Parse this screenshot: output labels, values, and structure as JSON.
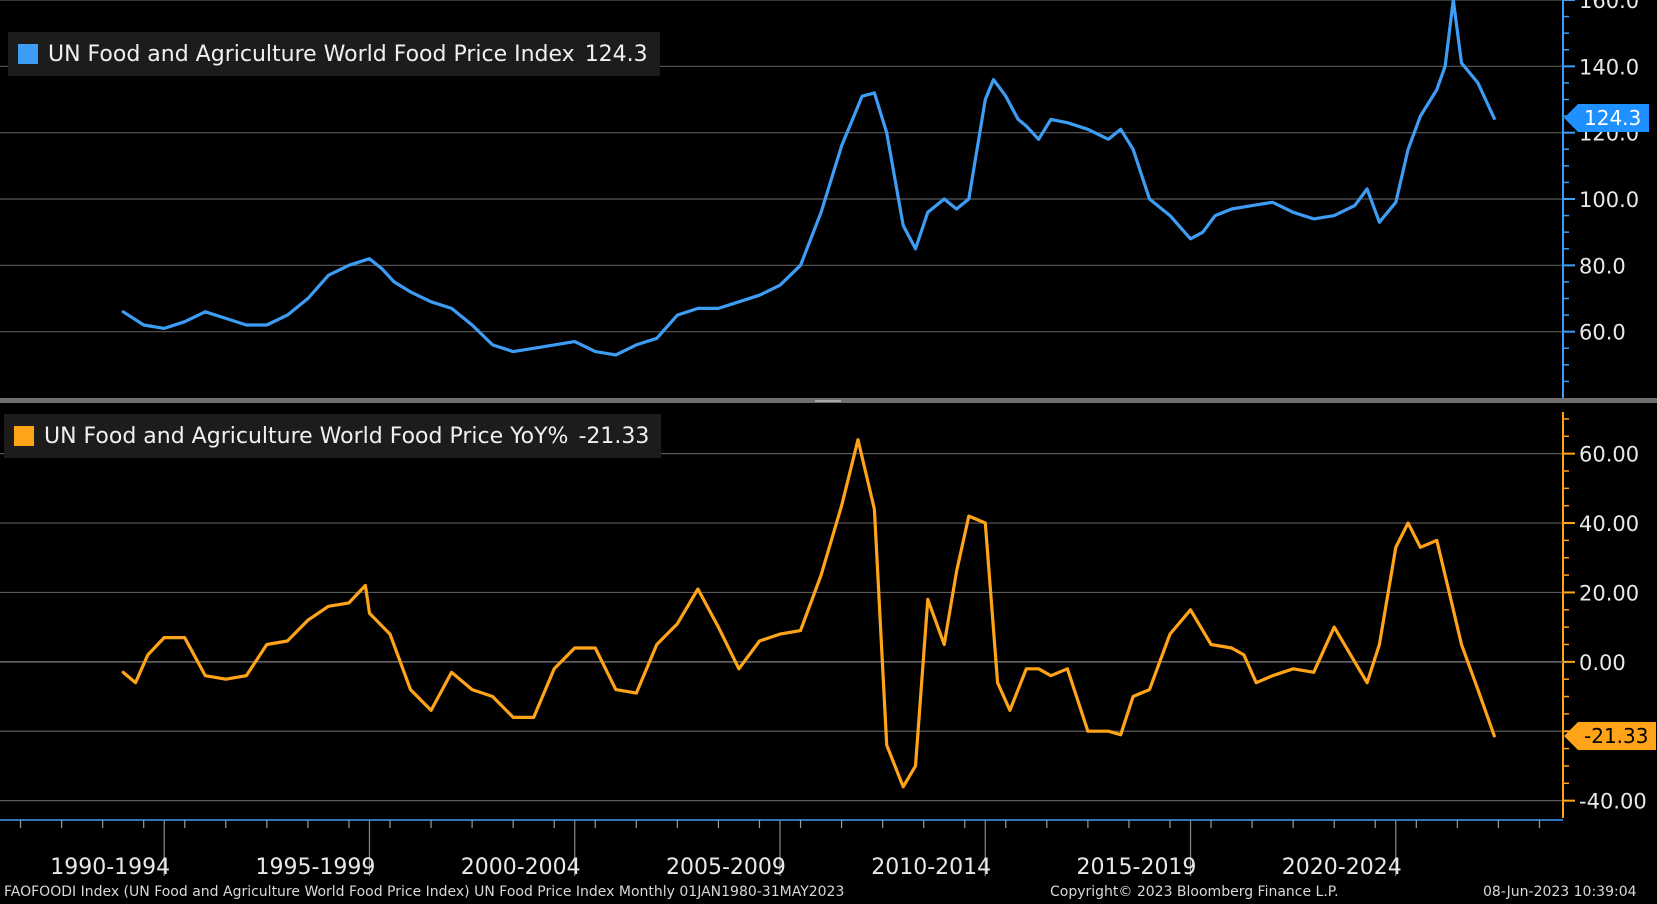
{
  "chart_data": [
    {
      "type": "line",
      "title": "UN Food and Agriculture World Food Price Index",
      "last_value": "124.3",
      "color": "#3d9df5",
      "ylim": [
        40,
        160
      ],
      "yticks": [
        "160.0",
        "140.0",
        "120.0",
        "100.0",
        "80.0",
        "60.0"
      ],
      "ytick_values": [
        160,
        140,
        120,
        100,
        80,
        60
      ],
      "x": [
        1990.0,
        1990.5,
        1991.0,
        1991.5,
        1992.0,
        1992.5,
        1993.0,
        1993.5,
        1994.0,
        1994.5,
        1995.0,
        1995.5,
        1996.0,
        1996.3,
        1996.6,
        1997.0,
        1997.5,
        1998.0,
        1998.5,
        1999.0,
        1999.5,
        2000.0,
        2000.5,
        2001.0,
        2001.5,
        2002.0,
        2002.5,
        2003.0,
        2003.5,
        2004.0,
        2004.5,
        2005.0,
        2005.5,
        2006.0,
        2006.5,
        2007.0,
        2007.5,
        2008.0,
        2008.3,
        2008.6,
        2009.0,
        2009.3,
        2009.6,
        2010.0,
        2010.3,
        2010.6,
        2011.0,
        2011.2,
        2011.5,
        2011.8,
        2012.0,
        2012.3,
        2012.6,
        2013.0,
        2013.5,
        2014.0,
        2014.3,
        2014.6,
        2015.0,
        2015.5,
        2016.0,
        2016.3,
        2016.6,
        2017.0,
        2017.5,
        2018.0,
        2018.5,
        2019.0,
        2019.5,
        2020.0,
        2020.3,
        2020.6,
        2021.0,
        2021.3,
        2021.6,
        2022.0,
        2022.2,
        2022.4,
        2022.6,
        2023.0,
        2023.4
      ],
      "values": [
        66,
        62,
        61,
        63,
        66,
        64,
        62,
        62,
        65,
        70,
        77,
        80,
        82,
        79,
        75,
        72,
        69,
        67,
        62,
        56,
        54,
        55,
        56,
        57,
        54,
        53,
        56,
        58,
        65,
        67,
        67,
        69,
        71,
        74,
        80,
        96,
        116,
        131,
        132,
        120,
        92,
        85,
        96,
        100,
        97,
        100,
        130,
        136,
        131,
        124,
        122,
        118,
        124,
        123,
        121,
        118,
        121,
        115,
        100,
        95,
        88,
        90,
        95,
        97,
        98,
        99,
        96,
        94,
        95,
        98,
        103,
        93,
        99,
        115,
        125,
        133,
        140,
        160,
        141,
        135,
        124.3
      ]
    },
    {
      "type": "line",
      "title": "UN Food and Agriculture World Food Price YoY%",
      "last_value": "-21.33",
      "color": "#ffa319",
      "ylim": [
        -45,
        72
      ],
      "yticks": [
        "60.00",
        "40.00",
        "20.00",
        "0.00",
        "-20.00",
        "-40.00"
      ],
      "ytick_values": [
        60,
        40,
        20,
        0,
        -20,
        -40
      ],
      "x": [
        1990.0,
        1990.3,
        1990.6,
        1991.0,
        1991.5,
        1992.0,
        1992.5,
        1993.0,
        1993.5,
        1994.0,
        1994.5,
        1995.0,
        1995.5,
        1995.9,
        1996.0,
        1996.5,
        1997.0,
        1997.5,
        1998.0,
        1998.5,
        1999.0,
        1999.5,
        2000.0,
        2000.5,
        2001.0,
        2001.5,
        2002.0,
        2002.5,
        2003.0,
        2003.5,
        2004.0,
        2004.5,
        2005.0,
        2005.5,
        2006.0,
        2006.5,
        2007.0,
        2007.5,
        2007.9,
        2008.3,
        2008.6,
        2009.0,
        2009.3,
        2009.6,
        2010.0,
        2010.3,
        2010.6,
        2011.0,
        2011.3,
        2011.6,
        2012.0,
        2012.3,
        2012.6,
        2013.0,
        2013.5,
        2014.0,
        2014.3,
        2014.6,
        2015.0,
        2015.5,
        2016.0,
        2016.5,
        2017.0,
        2017.3,
        2017.6,
        2018.0,
        2018.5,
        2019.0,
        2019.5,
        2020.0,
        2020.3,
        2020.6,
        2021.0,
        2021.3,
        2021.6,
        2022.0,
        2022.3,
        2022.6,
        2023.0,
        2023.4
      ],
      "values": [
        -3,
        -6,
        2,
        7,
        7,
        -4,
        -5,
        -4,
        5,
        6,
        12,
        16,
        17,
        22,
        14,
        8,
        -8,
        -14,
        -3,
        -8,
        -10,
        -16,
        -16,
        -2,
        4,
        4,
        -8,
        -9,
        5,
        11,
        21,
        10,
        -2,
        6,
        8,
        9,
        25,
        45,
        64,
        44,
        -24,
        -36,
        -30,
        18,
        5,
        26,
        42,
        40,
        -6,
        -14,
        -2,
        -2,
        -4,
        -2,
        -20,
        -20,
        -21,
        -10,
        -8,
        8,
        15,
        5,
        4,
        2,
        -6,
        -4,
        -2,
        -3,
        10,
        0,
        -6,
        5,
        33,
        40,
        33,
        35,
        20,
        5,
        -8,
        -21.33
      ]
    }
  ],
  "x_axis": {
    "labels": [
      "1990-1994",
      "1995-1999",
      "2000-2004",
      "2005-2009",
      "2010-2014",
      "2015-2019",
      "2020-2024"
    ],
    "range": [
      1987.0,
      2025.0
    ],
    "boundaries": [
      1991.0,
      1996.0,
      2001.0,
      2006.0,
      2011.0,
      2016.0,
      2021.0
    ]
  },
  "footer": {
    "left": "FAOFOODI Index (UN Food and Agriculture World Food Price Index) UN Food Price Index  Monthly 01JAN1980-31MAY2023",
    "middle": "Copyright© 2023 Bloomberg Finance L.P.",
    "right": "08-Jun-2023 10:39:04"
  }
}
